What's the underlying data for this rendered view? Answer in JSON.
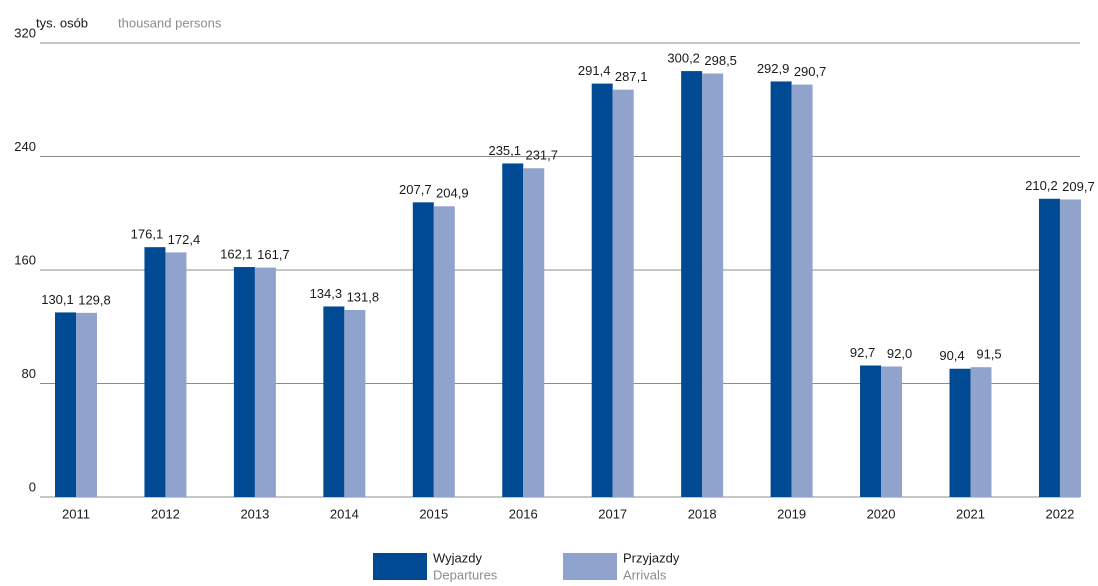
{
  "chart_data": {
    "type": "bar",
    "y_unit": "tys. osób",
    "y_unit_en": "thousand persons",
    "categories": [
      "2011",
      "2012",
      "2013",
      "2014",
      "2015",
      "2016",
      "2017",
      "2018",
      "2019",
      "2020",
      "2021",
      "2022"
    ],
    "series": [
      {
        "name": "Wyjazdy",
        "name_en": "Departures",
        "color": "#004a93",
        "values": [
          130.1,
          176.1,
          162.1,
          134.3,
          207.7,
          235.1,
          291.4,
          300.2,
          292.9,
          92.7,
          90.4,
          210.2
        ],
        "value_labels": [
          "130,1",
          "176,1",
          "162,1",
          "134,3",
          "207,7",
          "235,1",
          "291,4",
          "300,2",
          "292,9",
          "92,7",
          "90,4",
          "210,2"
        ]
      },
      {
        "name": "Przyjazdy",
        "name_en": "Arrivals",
        "color": "#8fa3cd",
        "values": [
          129.8,
          172.4,
          161.7,
          131.8,
          204.9,
          231.7,
          287.1,
          298.5,
          290.7,
          92.0,
          91.5,
          209.7
        ],
        "value_labels": [
          "129,8",
          "172,4",
          "161,7",
          "131,8",
          "204,9",
          "231,7",
          "287,1",
          "298,5",
          "290,7",
          "92,0",
          "91,5",
          "209,7"
        ]
      }
    ],
    "ylim": [
      0,
      320
    ],
    "yticks": [
      0,
      80,
      160,
      240,
      320
    ],
    "grid": true,
    "legend": "bottom"
  }
}
